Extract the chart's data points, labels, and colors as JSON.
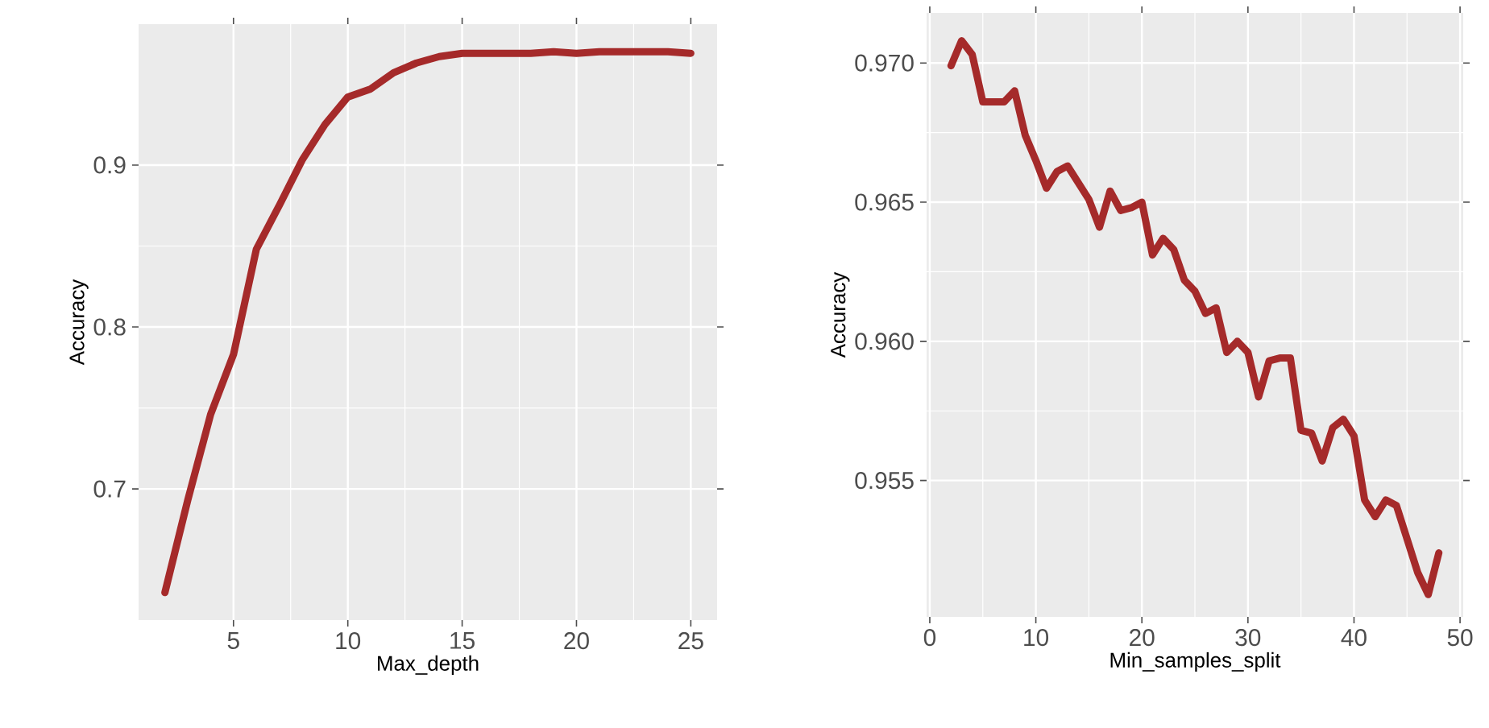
{
  "chart_data": [
    {
      "type": "line",
      "xlabel": "Max_depth",
      "ylabel": "Accuracy",
      "color": "#a52a2a",
      "grid": true,
      "x": [
        2,
        3,
        4,
        5,
        6,
        7,
        8,
        9,
        10,
        11,
        12,
        13,
        14,
        15,
        16,
        17,
        18,
        19,
        20,
        21,
        22,
        23,
        24,
        25
      ],
      "values": [
        0.636,
        0.693,
        0.746,
        0.783,
        0.848,
        0.875,
        0.903,
        0.925,
        0.942,
        0.947,
        0.957,
        0.963,
        0.967,
        0.969,
        0.969,
        0.969,
        0.969,
        0.97,
        0.969,
        0.97,
        0.97,
        0.97,
        0.97,
        0.969
      ],
      "xlim": [
        0.85,
        26.15
      ],
      "ylim": [
        0.619,
        0.987
      ],
      "xticks": [
        5,
        10,
        15,
        20,
        25
      ],
      "yticks": [
        0.7,
        0.8,
        0.9
      ]
    },
    {
      "type": "line",
      "xlabel": "Min_samples_split",
      "ylabel": "Accuracy",
      "color": "#a52a2a",
      "grid": true,
      "x": [
        2,
        3,
        4,
        5,
        6,
        7,
        8,
        9,
        10,
        11,
        12,
        13,
        14,
        15,
        16,
        17,
        18,
        19,
        20,
        21,
        22,
        23,
        24,
        25,
        26,
        27,
        28,
        29,
        30,
        31,
        32,
        33,
        34,
        35,
        36,
        37,
        38,
        39,
        40,
        41,
        42,
        43,
        44,
        45,
        46,
        47,
        48
      ],
      "values": [
        0.9699,
        0.9708,
        0.9703,
        0.9686,
        0.9686,
        0.9686,
        0.969,
        0.9674,
        0.9665,
        0.9655,
        0.9661,
        0.9663,
        0.9657,
        0.9651,
        0.9641,
        0.9654,
        0.9647,
        0.9648,
        0.965,
        0.9631,
        0.9637,
        0.9633,
        0.9622,
        0.9618,
        0.961,
        0.9612,
        0.9596,
        0.96,
        0.9596,
        0.958,
        0.9593,
        0.9594,
        0.9594,
        0.9568,
        0.9567,
        0.9557,
        0.9569,
        0.9572,
        0.9566,
        0.9543,
        0.9537,
        0.9543,
        0.9541,
        0.9529,
        0.9517,
        0.9509,
        0.9524
      ],
      "xlim": [
        -0.3,
        50.3
      ],
      "ylim": [
        0.9501,
        0.9718
      ],
      "xticks": [
        0,
        10,
        20,
        30,
        40,
        50
      ],
      "yticks": [
        {
          "value": 0.955,
          "label": "0.955"
        },
        {
          "value": 0.96,
          "label": "0.960"
        },
        {
          "value": 0.965,
          "label": "0.965"
        },
        {
          "value": 0.97,
          "label": "0.970"
        }
      ]
    }
  ]
}
